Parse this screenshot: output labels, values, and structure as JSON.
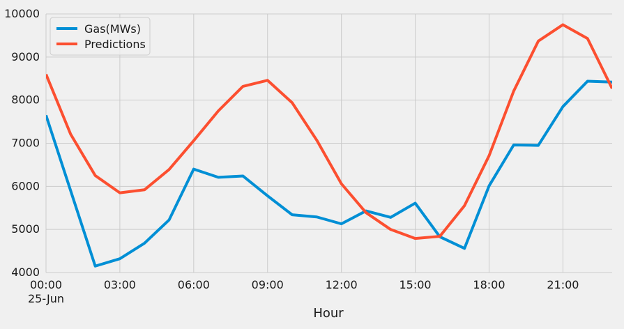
{
  "chart_data": {
    "type": "line",
    "title": "",
    "xlabel": "Hour",
    "ylabel": "",
    "x": [
      0,
      1,
      2,
      3,
      4,
      5,
      6,
      7,
      8,
      9,
      10,
      11,
      12,
      13,
      14,
      15,
      16,
      17,
      18,
      19,
      20,
      21,
      22,
      23
    ],
    "x_tick_labels": [
      {
        "x": 0,
        "label": "00:00",
        "sublabel": "25-Jun"
      },
      {
        "x": 3,
        "label": "03:00"
      },
      {
        "x": 6,
        "label": "06:00"
      },
      {
        "x": 9,
        "label": "09:00"
      },
      {
        "x": 12,
        "label": "12:00"
      },
      {
        "x": 15,
        "label": "15:00"
      },
      {
        "x": 18,
        "label": "18:00"
      },
      {
        "x": 21,
        "label": "21:00"
      }
    ],
    "ylim": [
      4000,
      10000
    ],
    "y_ticks": [
      4000,
      5000,
      6000,
      7000,
      8000,
      9000,
      10000
    ],
    "grid": true,
    "legend_position": "top-left",
    "series": [
      {
        "name": "Gas(MWs)",
        "color": "#008fd5",
        "values": [
          7650,
          5900,
          4150,
          4320,
          4680,
          5220,
          6400,
          6210,
          6240,
          5780,
          5340,
          5290,
          5130,
          5430,
          5280,
          5610,
          4830,
          4560,
          6010,
          6960,
          6950,
          7850,
          8440,
          8420
        ]
      },
      {
        "name": "Predictions",
        "color": "#fc4f30",
        "values": [
          8600,
          7210,
          6250,
          5850,
          5920,
          6390,
          7060,
          7750,
          8320,
          8460,
          7940,
          7070,
          6060,
          5390,
          5000,
          4790,
          4840,
          5550,
          6710,
          8210,
          9370,
          9750,
          9430,
          8270
        ]
      }
    ]
  }
}
